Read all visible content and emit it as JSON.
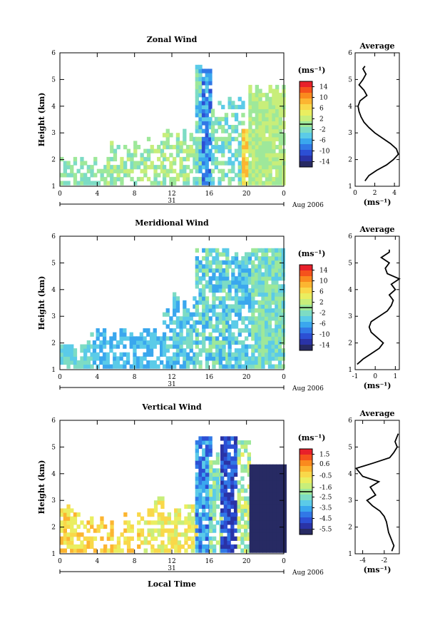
{
  "chart_data": [
    {
      "type": "heatmap",
      "title": "Zonal Wind",
      "ylabel": "Height (km)",
      "ylim": [
        1,
        6
      ],
      "y_ticks": [
        "1",
        "2",
        "3",
        "4",
        "5",
        "6"
      ],
      "xlim": [
        0,
        24
      ],
      "x_ticks": [
        "0",
        "4",
        "8",
        "12",
        "16",
        "20",
        "0"
      ],
      "date_label": "31",
      "date_suffix": "Aug 2006",
      "colorbar": {
        "unit": "(ms⁻¹)",
        "ticks": [
          "14",
          "10",
          "6",
          "2",
          "-2",
          "-6",
          "-10",
          "-14"
        ],
        "range": [
          -16,
          16
        ]
      },
      "profile": {
        "title": "Average",
        "xlim": [
          0,
          4.5
        ],
        "x_ticks": [
          "0",
          "2",
          "4"
        ],
        "xlabel": "(ms⁻¹)",
        "y_ticks": [
          "1",
          "2",
          "3",
          "4",
          "5",
          "6"
        ],
        "x": [
          1.0,
          1.4,
          2.2,
          3.2,
          3.9,
          4.4,
          4.2,
          3.6,
          2.8,
          2.0,
          1.4,
          0.9,
          0.6,
          0.4,
          0.3,
          0.5,
          1.2,
          0.9,
          0.4,
          0.8,
          1.1,
          0.8,
          1.0
        ],
        "y": [
          1.2,
          1.4,
          1.6,
          1.8,
          2.0,
          2.2,
          2.4,
          2.6,
          2.8,
          3.0,
          3.2,
          3.4,
          3.6,
          3.8,
          4.0,
          4.2,
          4.4,
          4.6,
          4.8,
          5.0,
          5.2,
          5.4,
          5.5
        ]
      }
    },
    {
      "type": "heatmap",
      "title": "Meridional Wind",
      "ylabel": "Height (km)",
      "ylim": [
        1,
        6
      ],
      "y_ticks": [
        "1",
        "2",
        "3",
        "4",
        "5",
        "6"
      ],
      "xlim": [
        0,
        24
      ],
      "x_ticks": [
        "0",
        "4",
        "8",
        "12",
        "16",
        "20",
        "0"
      ],
      "date_label": "31",
      "date_suffix": "Aug 2006",
      "colorbar": {
        "unit": "(ms⁻¹)",
        "ticks": [
          "14",
          "10",
          "6",
          "2",
          "-2",
          "-6",
          "-10",
          "-14"
        ],
        "range": [
          -16,
          16
        ]
      },
      "profile": {
        "title": "Average",
        "xlim": [
          -1,
          1.2
        ],
        "x_ticks": [
          "-1",
          "0",
          "1"
        ],
        "xlabel": "(ms⁻¹)",
        "y_ticks": [
          "1",
          "2",
          "3",
          "4",
          "5",
          "6"
        ],
        "x": [
          -0.9,
          -0.6,
          -0.2,
          0.2,
          0.4,
          0.1,
          -0.2,
          -0.3,
          -0.2,
          0.2,
          0.6,
          0.8,
          0.9,
          0.7,
          1.0,
          0.8,
          1.2,
          0.6,
          0.5,
          0.7,
          0.3,
          0.7,
          0.7
        ],
        "y": [
          1.2,
          1.4,
          1.6,
          1.8,
          2.0,
          2.2,
          2.4,
          2.6,
          2.8,
          3.0,
          3.2,
          3.4,
          3.6,
          3.8,
          4.0,
          4.2,
          4.4,
          4.6,
          4.8,
          5.0,
          5.2,
          5.4,
          5.5
        ]
      }
    },
    {
      "type": "heatmap",
      "title": "Vertical Wind",
      "ylabel": "Height (km)",
      "ylim": [
        1,
        6
      ],
      "y_ticks": [
        "1",
        "2",
        "3",
        "4",
        "5",
        "6"
      ],
      "xlim": [
        0,
        24
      ],
      "x_ticks": [
        "0",
        "4",
        "8",
        "12",
        "16",
        "20",
        "0"
      ],
      "date_label": "31",
      "date_suffix": "Aug 2006",
      "xlabel": "Local Time",
      "colorbar": {
        "unit": "(ms⁻¹)",
        "ticks": [
          "1.5",
          "0.6",
          "-0.5",
          "-1.6",
          "-2.5",
          "-3.5",
          "-4.5",
          "-5.5"
        ],
        "range": [
          -6.0,
          2.0
        ]
      },
      "profile": {
        "title": "Average",
        "xlim": [
          -4.7,
          -0.6
        ],
        "x_ticks": [
          "-4",
          "-2"
        ],
        "xlabel": "(ms⁻¹)",
        "y_ticks": [
          "1",
          "2",
          "3",
          "4",
          "5",
          "6"
        ],
        "x": [
          -1.3,
          -1.1,
          -1.3,
          -1.6,
          -1.7,
          -1.8,
          -2.0,
          -2.4,
          -3.1,
          -3.6,
          -2.8,
          -3.3,
          -2.5,
          -4.0,
          -4.6,
          -3.0,
          -1.5,
          -1.1,
          -0.8,
          -1.0,
          -0.7
        ],
        "y": [
          1.1,
          1.3,
          1.5,
          1.8,
          2.0,
          2.2,
          2.4,
          2.6,
          2.8,
          3.0,
          3.2,
          3.5,
          3.7,
          3.9,
          4.2,
          4.4,
          4.6,
          4.8,
          5.0,
          5.2,
          5.5
        ]
      }
    }
  ]
}
